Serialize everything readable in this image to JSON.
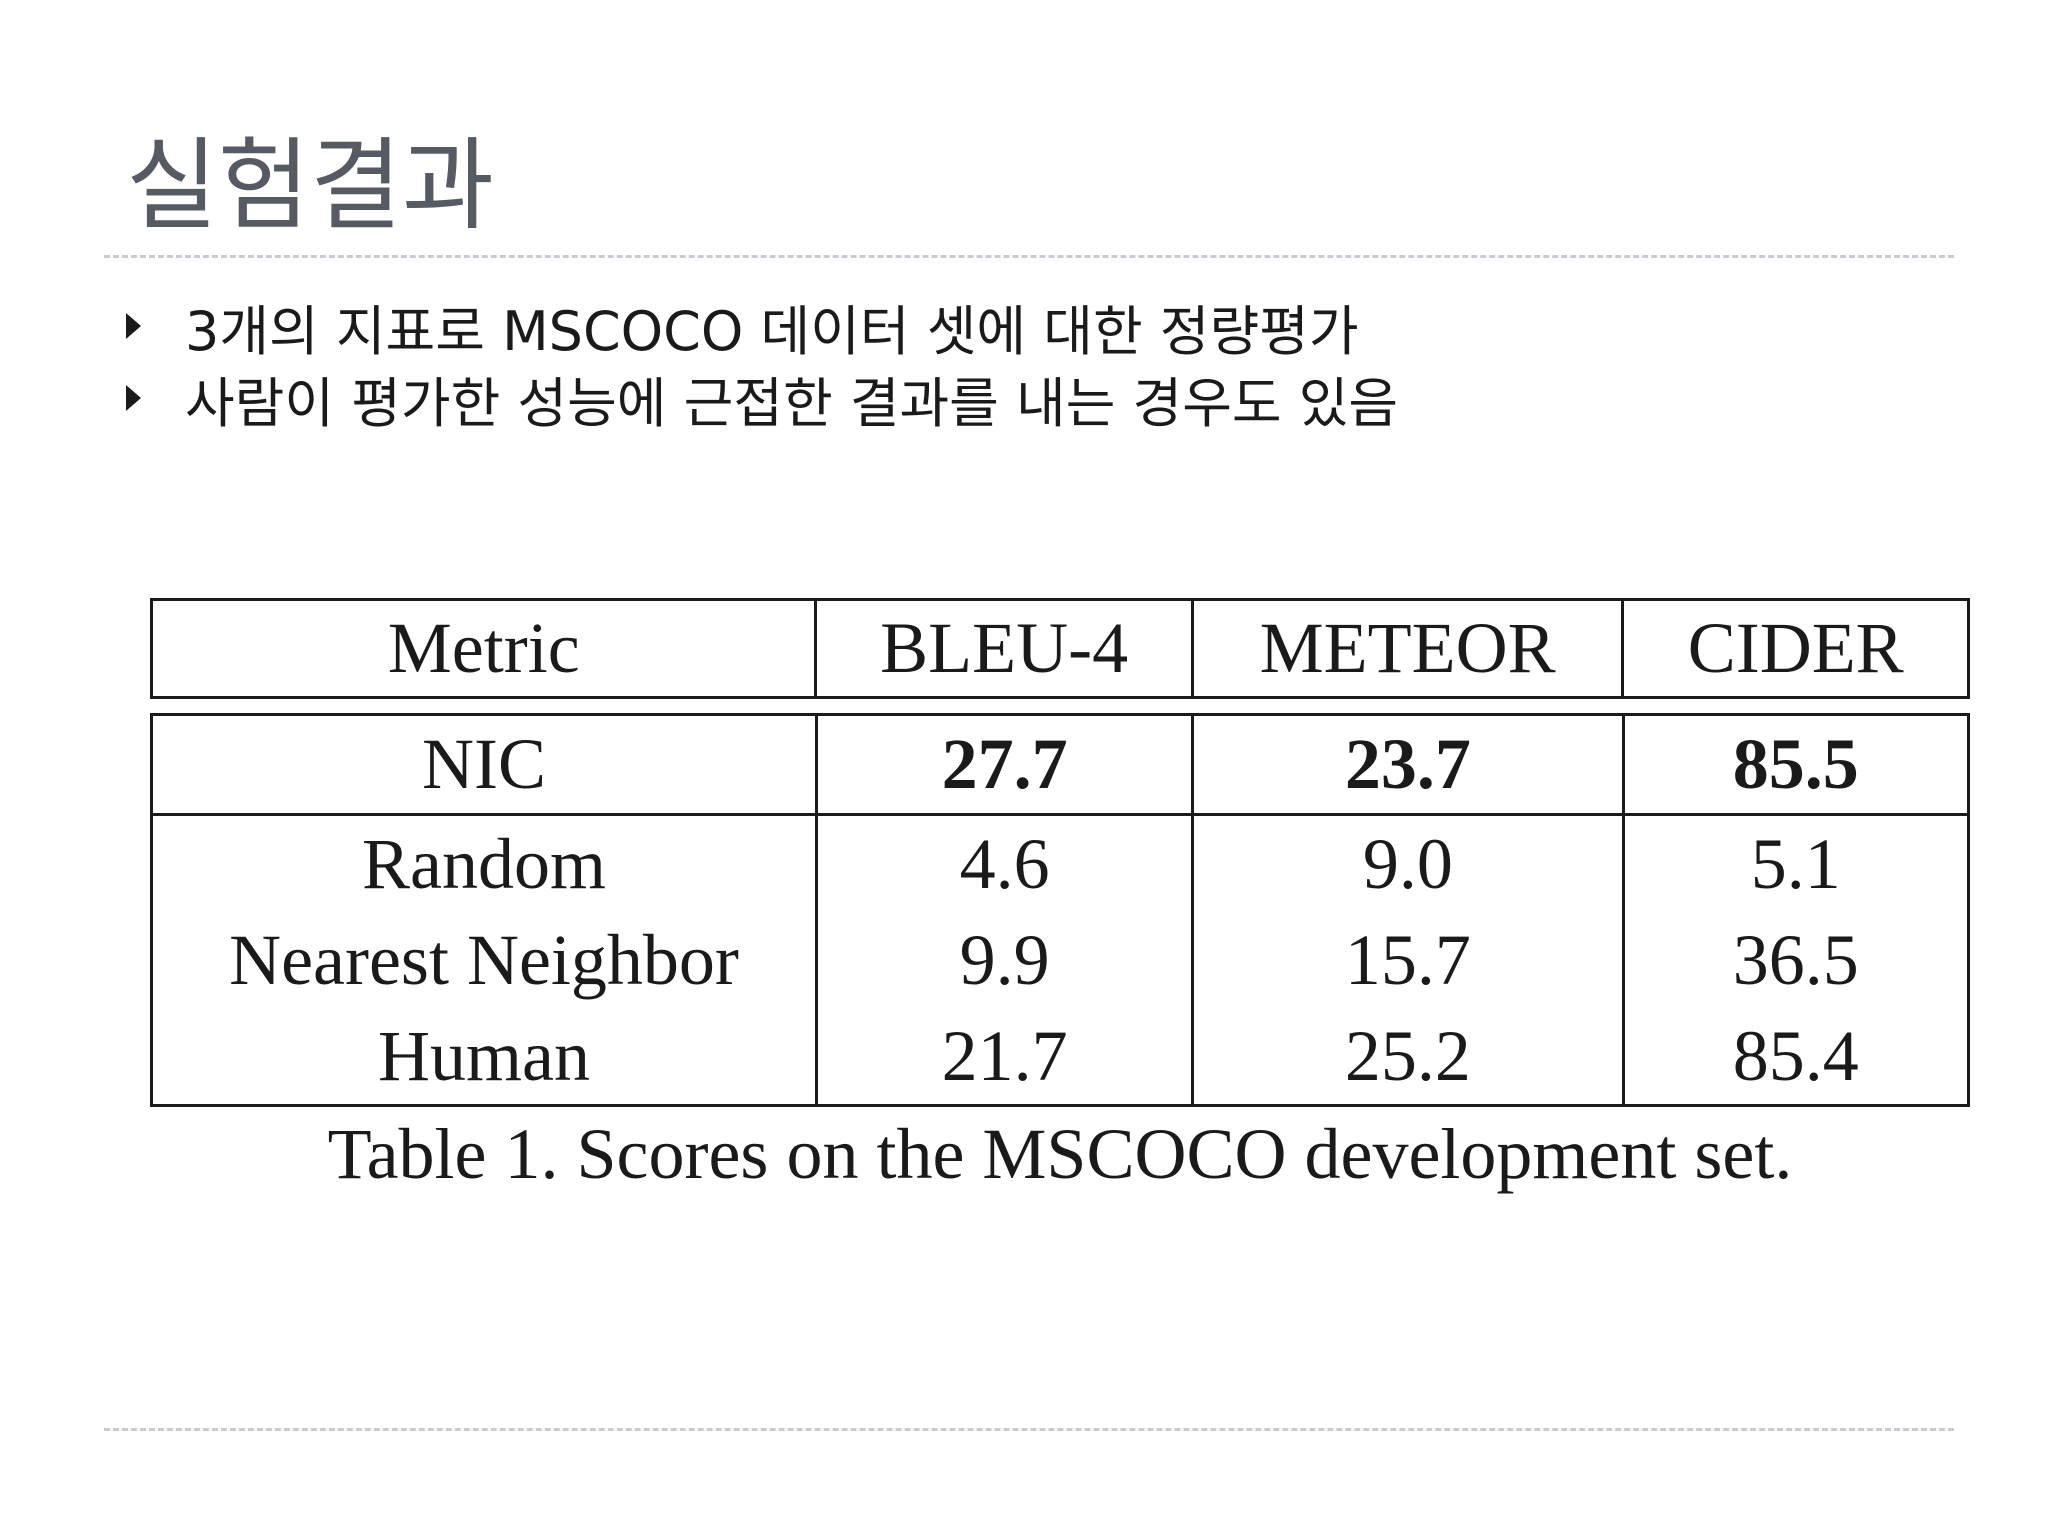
{
  "slide": {
    "title": "실험결과",
    "bullets": [
      "3개의 지표로 MSCOCO 데이터 셋에 대한 정량평가",
      "사람이 평가한 성능에 근접한 결과를 내는 경우도 있음"
    ]
  },
  "table": {
    "headers": [
      "Metric",
      "BLEU-4",
      "METEOR",
      "CIDER"
    ],
    "rows": [
      {
        "metric": "NIC",
        "bleu4": "27.7",
        "meteor": "23.7",
        "cider": "85.5",
        "bold": true
      },
      {
        "metric": "Random",
        "bleu4": "4.6",
        "meteor": "9.0",
        "cider": "5.1"
      },
      {
        "metric": "Nearest Neighbor",
        "bleu4": "9.9",
        "meteor": "15.7",
        "cider": "36.5"
      },
      {
        "metric": "Human",
        "bleu4": "21.7",
        "meteor": "25.2",
        "cider": "85.4"
      }
    ],
    "caption": "Table 1. Scores on the MSCOCO development set."
  },
  "colors": {
    "title": "#555a63",
    "text": "#1a1a1a",
    "rule": "#c8ccd2"
  },
  "icons": {
    "bullet": "triangle-right-icon"
  }
}
